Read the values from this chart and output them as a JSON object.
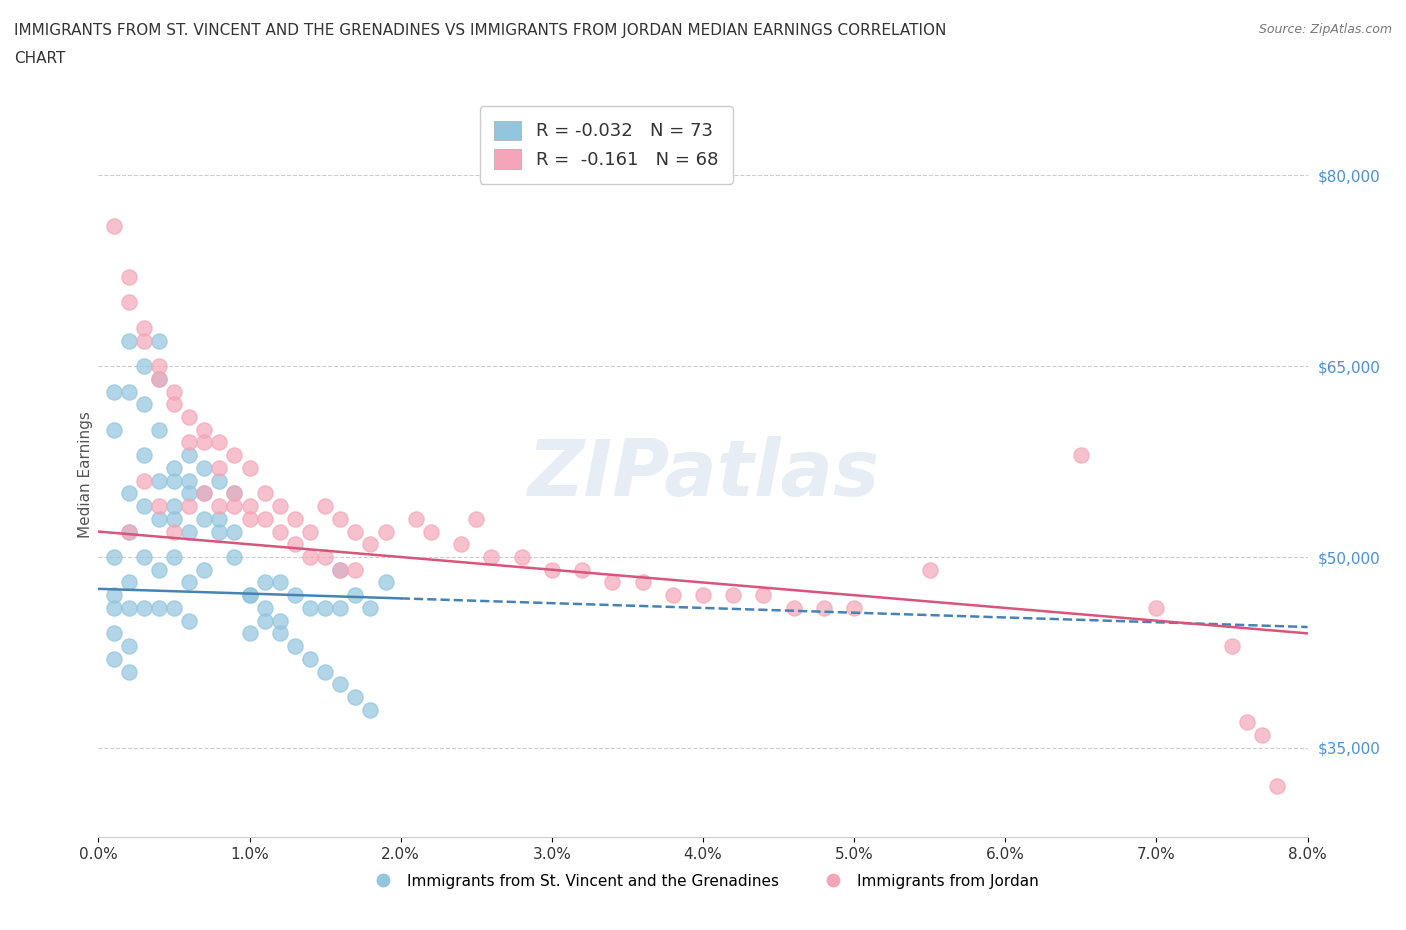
{
  "title_line1": "IMMIGRANTS FROM ST. VINCENT AND THE GRENADINES VS IMMIGRANTS FROM JORDAN MEDIAN EARNINGS CORRELATION",
  "title_line2": "CHART",
  "source": "Source: ZipAtlas.com",
  "ylabel": "Median Earnings",
  "xlim": [
    0.0,
    0.08
  ],
  "ylim": [
    28000,
    85000
  ],
  "yticks": [
    35000,
    50000,
    65000,
    80000
  ],
  "ytick_labels": [
    "$35,000",
    "$50,000",
    "$65,000",
    "$80,000"
  ],
  "xticks": [
    0.0,
    0.01,
    0.02,
    0.03,
    0.04,
    0.05,
    0.06,
    0.07,
    0.08
  ],
  "xtick_labels": [
    "0.0%",
    "1.0%",
    "2.0%",
    "3.0%",
    "4.0%",
    "5.0%",
    "6.0%",
    "7.0%",
    "8.0%"
  ],
  "color_blue": "#92c5de",
  "color_pink": "#f4a6b8",
  "color_blue_line": "#4682b4",
  "color_pink_line": "#d9547a",
  "legend_blue_r": "-0.032",
  "legend_blue_n": "73",
  "legend_pink_r": "-0.161",
  "legend_pink_n": "68",
  "legend_label_blue": "Immigrants from St. Vincent and the Grenadines",
  "legend_label_pink": "Immigrants from Jordan",
  "blue_x": [
    0.001,
    0.001,
    0.001,
    0.001,
    0.001,
    0.002,
    0.002,
    0.002,
    0.002,
    0.002,
    0.002,
    0.003,
    0.003,
    0.003,
    0.003,
    0.004,
    0.004,
    0.004,
    0.004,
    0.004,
    0.005,
    0.005,
    0.005,
    0.005,
    0.006,
    0.006,
    0.006,
    0.006,
    0.006,
    0.007,
    0.007,
    0.007,
    0.008,
    0.008,
    0.009,
    0.009,
    0.01,
    0.01,
    0.011,
    0.011,
    0.012,
    0.012,
    0.013,
    0.014,
    0.015,
    0.016,
    0.016,
    0.017,
    0.018,
    0.019,
    0.001,
    0.001,
    0.002,
    0.002,
    0.003,
    0.003,
    0.004,
    0.004,
    0.005,
    0.005,
    0.006,
    0.007,
    0.008,
    0.009,
    0.01,
    0.011,
    0.012,
    0.013,
    0.014,
    0.015,
    0.016,
    0.017,
    0.018
  ],
  "blue_y": [
    47000,
    44000,
    50000,
    46000,
    42000,
    55000,
    52000,
    48000,
    46000,
    43000,
    41000,
    58000,
    54000,
    50000,
    46000,
    60000,
    56000,
    53000,
    49000,
    46000,
    56000,
    53000,
    50000,
    46000,
    58000,
    55000,
    52000,
    48000,
    45000,
    57000,
    53000,
    49000,
    56000,
    52000,
    55000,
    50000,
    47000,
    44000,
    48000,
    45000,
    48000,
    45000,
    47000,
    46000,
    46000,
    49000,
    46000,
    47000,
    46000,
    48000,
    63000,
    60000,
    67000,
    63000,
    65000,
    62000,
    67000,
    64000,
    57000,
    54000,
    56000,
    55000,
    53000,
    52000,
    47000,
    46000,
    44000,
    43000,
    42000,
    41000,
    40000,
    39000,
    38000
  ],
  "pink_x": [
    0.002,
    0.002,
    0.003,
    0.003,
    0.004,
    0.004,
    0.005,
    0.005,
    0.006,
    0.006,
    0.007,
    0.007,
    0.008,
    0.008,
    0.009,
    0.009,
    0.01,
    0.01,
    0.011,
    0.012,
    0.013,
    0.014,
    0.015,
    0.016,
    0.017,
    0.018,
    0.019,
    0.021,
    0.022,
    0.024,
    0.026,
    0.028,
    0.03,
    0.032,
    0.034,
    0.036,
    0.038,
    0.04,
    0.042,
    0.044,
    0.046,
    0.048,
    0.05,
    0.001,
    0.002,
    0.003,
    0.004,
    0.005,
    0.006,
    0.007,
    0.008,
    0.009,
    0.01,
    0.011,
    0.012,
    0.013,
    0.014,
    0.015,
    0.016,
    0.017,
    0.025,
    0.055,
    0.065,
    0.07,
    0.075,
    0.076,
    0.077,
    0.078
  ],
  "pink_y": [
    70000,
    52000,
    67000,
    56000,
    64000,
    54000,
    62000,
    52000,
    59000,
    54000,
    60000,
    55000,
    59000,
    54000,
    58000,
    54000,
    57000,
    53000,
    55000,
    54000,
    53000,
    52000,
    54000,
    53000,
    52000,
    51000,
    52000,
    53000,
    52000,
    51000,
    50000,
    50000,
    49000,
    49000,
    48000,
    48000,
    47000,
    47000,
    47000,
    47000,
    46000,
    46000,
    46000,
    76000,
    72000,
    68000,
    65000,
    63000,
    61000,
    59000,
    57000,
    55000,
    54000,
    53000,
    52000,
    51000,
    50000,
    50000,
    49000,
    49000,
    53000,
    49000,
    58000,
    46000,
    43000,
    37000,
    36000,
    32000
  ]
}
